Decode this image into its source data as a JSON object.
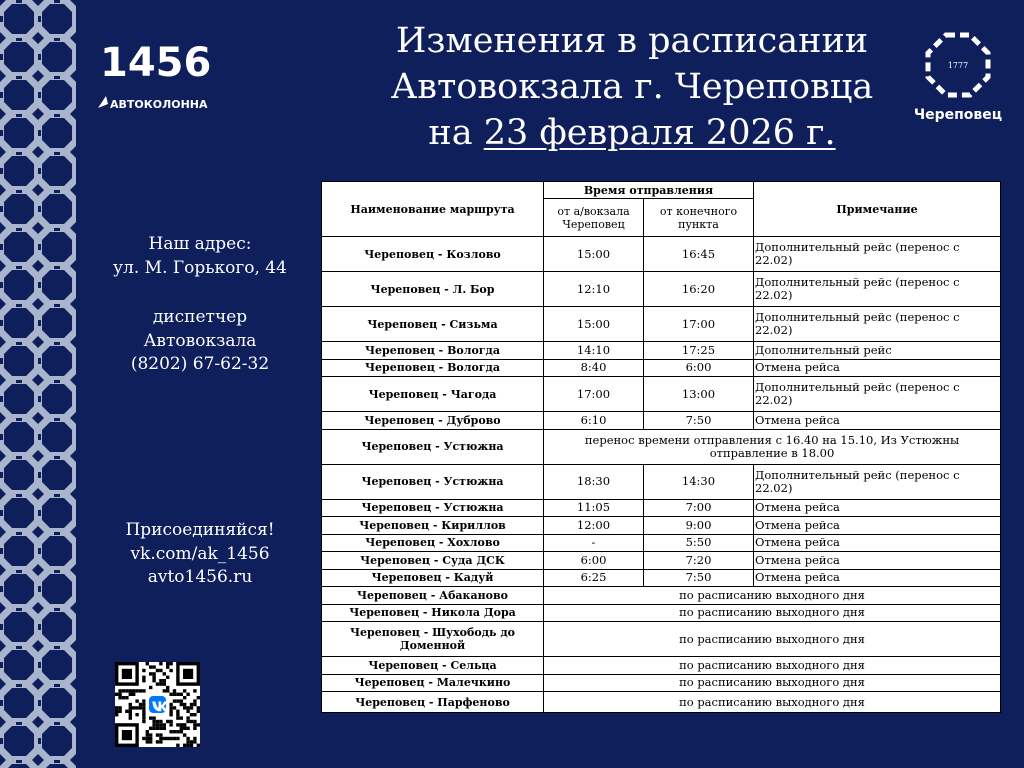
{
  "brand": {
    "logo_text": "1456",
    "logo_subtitle": "АВТОКОЛОННА"
  },
  "city_logo": {
    "year": "1777",
    "name": "Череповец"
  },
  "title": {
    "line1": "Изменения в расписании",
    "line2": "Автовокзала г. Череповца",
    "line3_prefix": "на ",
    "line3_date": "23 февраля 2026 г."
  },
  "contacts": {
    "address_label": "Наш адрес:",
    "address": "ул. М. Горького, 44",
    "dispatcher_line1": "диспетчер",
    "dispatcher_line2": "Автовокзала",
    "phone": "(8202) 67-62-32",
    "join": "Присоединяйся!",
    "vk": "vk.com/ak_1456",
    "site": "avto1456.ru"
  },
  "table": {
    "headers": {
      "route": "Наименование маршрута",
      "departure_group": "Время отправления",
      "from_station": "от а/вокзала Череповец",
      "from_terminal": "от конечного пункта",
      "note": "Примечание"
    },
    "rows": [
      {
        "route": "Череповец - Козлово",
        "dep": "15:00",
        "arr": "16:45",
        "note": "Дополнительный  рейс (перенос с 22.02)",
        "h": 2
      },
      {
        "route": "Череповец - Л. Бор",
        "dep": "12:10",
        "arr": "16:20",
        "note": "Дополнительный  рейс (перенос с 22.02)",
        "h": 2
      },
      {
        "route": "Череповец - Сизьма",
        "dep": "15:00",
        "arr": "17:00",
        "note": "Дополнительный  рейс (перенос с 22.02)",
        "h": 2
      },
      {
        "route": "Череповец - Вологда",
        "dep": "14:10",
        "arr": "17:25",
        "note": "Дополнительный  рейс",
        "h": 1
      },
      {
        "route": "Череповец - Вологда",
        "dep": "8:40",
        "arr": "6:00",
        "note": "Отмена рейса",
        "h": 1
      },
      {
        "route": "Череповец - Чагода",
        "dep": "17:00",
        "arr": "13:00",
        "note": "Дополнительный  рейс (перенос с 22.02)",
        "h": 2
      },
      {
        "route": "Череповец - Дуброво",
        "dep": "6:10",
        "arr": "7:50",
        "note": "Отмена  рейса",
        "h": 1
      },
      {
        "route": "Череповец - Устюжна",
        "span": "перенос времени отправления с 16.40 на 15.10, Из Устюжны отправление в 18.00",
        "h": 2
      },
      {
        "route": "Череповец - Устюжна",
        "dep": "18:30",
        "arr": "14:30",
        "note": "Дополнительный  рейс (перенос с 22.02)",
        "h": 2
      },
      {
        "route": "Череповец - Устюжна",
        "dep": "11:05",
        "arr": "7:00",
        "note": "Отмена рейса",
        "h": 1
      },
      {
        "route": "Череповец - Кириллов",
        "dep": "12:00",
        "arr": "9:00",
        "note": "Отмена рейса",
        "h": 1
      },
      {
        "route": "Череповец - Хохлово",
        "dep": "-",
        "arr": "5:50",
        "note": "Отмена рейса",
        "h": 1
      },
      {
        "route": "Череповец - Суда ДСК",
        "dep": "6:00",
        "arr": "7:20",
        "note": "Отмена  рейса",
        "h": 1
      },
      {
        "route": "Череповец - Кадуй",
        "dep": "6:25",
        "arr": "7:50",
        "note": "Отмена  рейса",
        "h": 1
      },
      {
        "route": "Череповец - Абаканово",
        "span": "по расписанию выходного дня",
        "h": 1
      },
      {
        "route": "Череповец - Никола Дора",
        "span": "по расписанию выходного дня",
        "h": 1
      },
      {
        "route": "Череповец - Шухободь до Доменной",
        "span": "по расписанию выходного дня",
        "h": 2
      },
      {
        "route": "Череповец - Сельца",
        "span": "по расписанию выходного дня",
        "h": 1
      },
      {
        "route": "Череповец - Малечкино",
        "span": "по расписанию выходного дня",
        "h": 1
      },
      {
        "route": "Череповец - Парфеново",
        "span": "по расписанию выходного дня",
        "h": 1.2
      }
    ]
  },
  "colors": {
    "background": "#0f1f5c",
    "pattern": "#a9b5cc"
  },
  "qr": {
    "icon": "vk-icon"
  }
}
